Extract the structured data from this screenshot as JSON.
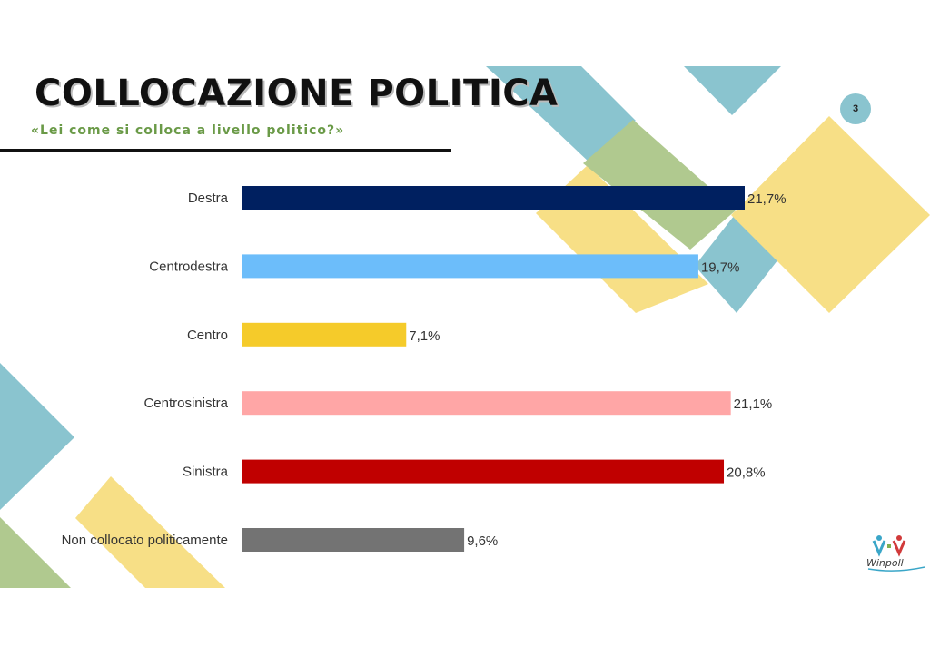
{
  "header": {
    "title": "COLLOCAZIONE POLITICA",
    "subtitle": "«Lei come si colloca a livello politico?»"
  },
  "page_number": "3",
  "colors": {
    "teal": "#8ac4cf",
    "green": "#b0c98f",
    "yellow": "#f7df86",
    "title_green": "#6a9a47"
  },
  "logo": {
    "text": "Winpoll"
  },
  "chart_data": {
    "type": "bar",
    "orientation": "horizontal",
    "categories": [
      "Destra",
      "Centrodestra",
      "Centro",
      "Centrosinistra",
      "Sinistra",
      "Non collocato politicamente"
    ],
    "values": [
      21.7,
      19.7,
      7.1,
      21.1,
      20.8,
      9.6
    ],
    "value_labels": [
      "21,7%",
      "19,7%",
      "7,1%",
      "21,1%",
      "20,8%",
      "9,6%"
    ],
    "bar_colors": [
      "#002060",
      "#6cbdfa",
      "#f5cb2a",
      "#ffa6a6",
      "#c00000",
      "#737373"
    ],
    "xlim": [
      0,
      21.7
    ],
    "grid": false,
    "legend": "none"
  }
}
